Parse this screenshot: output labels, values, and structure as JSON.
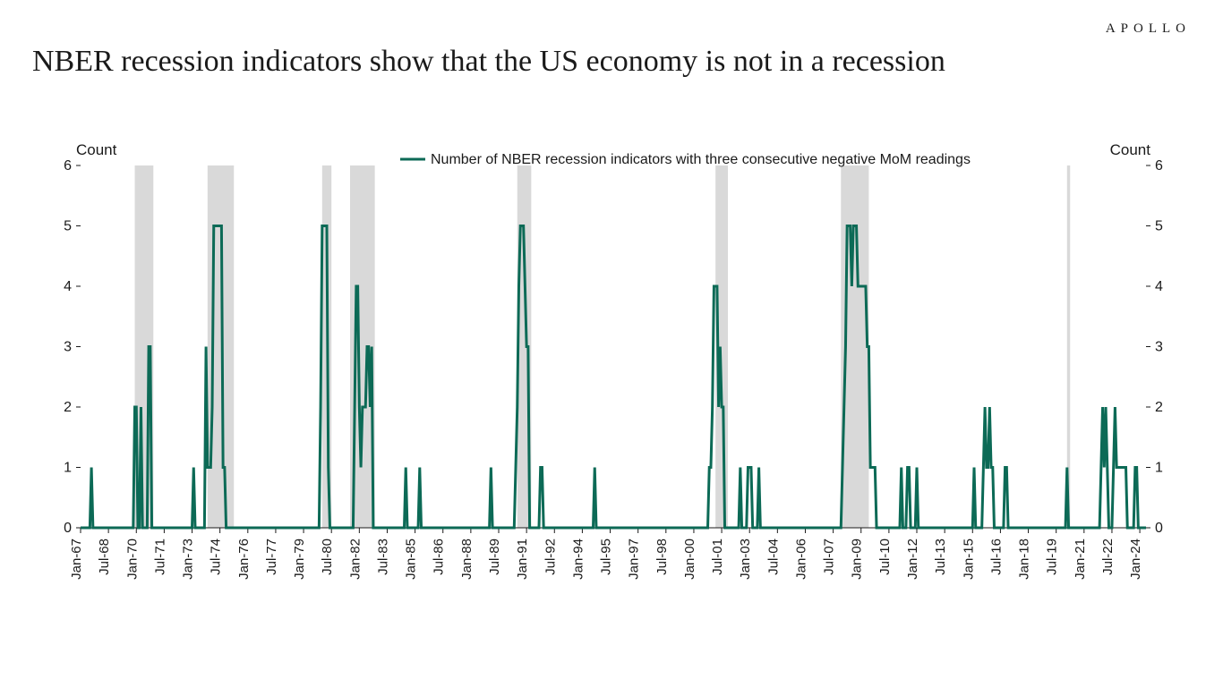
{
  "brand": "APOLLO",
  "title": "NBER recession indicators show that the US economy is not in a recession",
  "chart": {
    "type": "line",
    "y_axis_title_left": "Count",
    "y_axis_title_right": "Count",
    "ylim": [
      0,
      6
    ],
    "yticks": [
      0,
      1,
      2,
      3,
      4,
      5,
      6
    ],
    "xlim_months": [
      0,
      688
    ],
    "legend_label": "Number of NBER recession indicators with three consecutive negative MoM readings",
    "line_color": "#0c6a56",
    "line_width": 3,
    "recession_band_color": "#d9d9d9",
    "background_color": "#ffffff",
    "axis_color": "#1a1a1a",
    "tick_fontsize": 16,
    "xtick_fontsize": 15,
    "title_fontsize": 34,
    "x_tick_labels": [
      {
        "m": 0,
        "label": "Jan-67"
      },
      {
        "m": 18,
        "label": "Jul-68"
      },
      {
        "m": 36,
        "label": "Jan-70"
      },
      {
        "m": 54,
        "label": "Jul-71"
      },
      {
        "m": 72,
        "label": "Jan-73"
      },
      {
        "m": 90,
        "label": "Jul-74"
      },
      {
        "m": 108,
        "label": "Jan-76"
      },
      {
        "m": 126,
        "label": "Jul-77"
      },
      {
        "m": 144,
        "label": "Jan-79"
      },
      {
        "m": 162,
        "label": "Jul-80"
      },
      {
        "m": 180,
        "label": "Jan-82"
      },
      {
        "m": 198,
        "label": "Jul-83"
      },
      {
        "m": 216,
        "label": "Jan-85"
      },
      {
        "m": 234,
        "label": "Jul-86"
      },
      {
        "m": 252,
        "label": "Jan-88"
      },
      {
        "m": 270,
        "label": "Jul-89"
      },
      {
        "m": 288,
        "label": "Jan-91"
      },
      {
        "m": 306,
        "label": "Jul-92"
      },
      {
        "m": 324,
        "label": "Jan-94"
      },
      {
        "m": 342,
        "label": "Jul-95"
      },
      {
        "m": 360,
        "label": "Jan-97"
      },
      {
        "m": 378,
        "label": "Jul-98"
      },
      {
        "m": 396,
        "label": "Jan-00"
      },
      {
        "m": 414,
        "label": "Jul-01"
      },
      {
        "m": 432,
        "label": "Jan-03"
      },
      {
        "m": 450,
        "label": "Jul-04"
      },
      {
        "m": 468,
        "label": "Jan-06"
      },
      {
        "m": 486,
        "label": "Jul-07"
      },
      {
        "m": 504,
        "label": "Jan-09"
      },
      {
        "m": 522,
        "label": "Jul-10"
      },
      {
        "m": 540,
        "label": "Jan-12"
      },
      {
        "m": 558,
        "label": "Jul-13"
      },
      {
        "m": 576,
        "label": "Jan-15"
      },
      {
        "m": 594,
        "label": "Jul-16"
      },
      {
        "m": 612,
        "label": "Jan-18"
      },
      {
        "m": 630,
        "label": "Jul-19"
      },
      {
        "m": 648,
        "label": "Jan-21"
      },
      {
        "m": 666,
        "label": "Jul-22"
      },
      {
        "m": 684,
        "label": "Jan-24"
      }
    ],
    "recession_bands": [
      {
        "start": 35,
        "end": 47
      },
      {
        "start": 82,
        "end": 99
      },
      {
        "start": 156,
        "end": 162
      },
      {
        "start": 174,
        "end": 190
      },
      {
        "start": 282,
        "end": 291
      },
      {
        "start": 410,
        "end": 418
      },
      {
        "start": 491,
        "end": 509
      },
      {
        "start": 637,
        "end": 639
      }
    ],
    "series": [
      {
        "m": 0,
        "v": 0
      },
      {
        "m": 6,
        "v": 0
      },
      {
        "m": 7,
        "v": 1
      },
      {
        "m": 8,
        "v": 0
      },
      {
        "m": 34,
        "v": 0
      },
      {
        "m": 35,
        "v": 2
      },
      {
        "m": 36,
        "v": 2
      },
      {
        "m": 37,
        "v": 0
      },
      {
        "m": 38,
        "v": 0
      },
      {
        "m": 39,
        "v": 2
      },
      {
        "m": 40,
        "v": 0
      },
      {
        "m": 43,
        "v": 0
      },
      {
        "m": 44,
        "v": 3
      },
      {
        "m": 45,
        "v": 3
      },
      {
        "m": 46,
        "v": 0
      },
      {
        "m": 72,
        "v": 0
      },
      {
        "m": 73,
        "v": 1
      },
      {
        "m": 74,
        "v": 0
      },
      {
        "m": 80,
        "v": 0
      },
      {
        "m": 81,
        "v": 3
      },
      {
        "m": 82,
        "v": 1
      },
      {
        "m": 83,
        "v": 1
      },
      {
        "m": 84,
        "v": 1
      },
      {
        "m": 85,
        "v": 2
      },
      {
        "m": 86,
        "v": 5
      },
      {
        "m": 87,
        "v": 5
      },
      {
        "m": 88,
        "v": 5
      },
      {
        "m": 89,
        "v": 5
      },
      {
        "m": 90,
        "v": 5
      },
      {
        "m": 91,
        "v": 5
      },
      {
        "m": 92,
        "v": 1
      },
      {
        "m": 93,
        "v": 1
      },
      {
        "m": 94,
        "v": 0
      },
      {
        "m": 154,
        "v": 0
      },
      {
        "m": 155,
        "v": 2
      },
      {
        "m": 156,
        "v": 5
      },
      {
        "m": 157,
        "v": 5
      },
      {
        "m": 158,
        "v": 5
      },
      {
        "m": 159,
        "v": 5
      },
      {
        "m": 160,
        "v": 1
      },
      {
        "m": 161,
        "v": 0
      },
      {
        "m": 176,
        "v": 0
      },
      {
        "m": 177,
        "v": 2
      },
      {
        "m": 178,
        "v": 4
      },
      {
        "m": 179,
        "v": 4
      },
      {
        "m": 180,
        "v": 2
      },
      {
        "m": 181,
        "v": 1
      },
      {
        "m": 182,
        "v": 2
      },
      {
        "m": 183,
        "v": 2
      },
      {
        "m": 184,
        "v": 2
      },
      {
        "m": 185,
        "v": 3
      },
      {
        "m": 186,
        "v": 3
      },
      {
        "m": 187,
        "v": 2
      },
      {
        "m": 188,
        "v": 3
      },
      {
        "m": 189,
        "v": 0
      },
      {
        "m": 209,
        "v": 0
      },
      {
        "m": 210,
        "v": 1
      },
      {
        "m": 211,
        "v": 0
      },
      {
        "m": 218,
        "v": 0
      },
      {
        "m": 219,
        "v": 1
      },
      {
        "m": 220,
        "v": 0
      },
      {
        "m": 264,
        "v": 0
      },
      {
        "m": 265,
        "v": 1
      },
      {
        "m": 266,
        "v": 0
      },
      {
        "m": 280,
        "v": 0
      },
      {
        "m": 281,
        "v": 1
      },
      {
        "m": 282,
        "v": 2
      },
      {
        "m": 283,
        "v": 4
      },
      {
        "m": 284,
        "v": 5
      },
      {
        "m": 285,
        "v": 5
      },
      {
        "m": 286,
        "v": 5
      },
      {
        "m": 287,
        "v": 4
      },
      {
        "m": 288,
        "v": 3
      },
      {
        "m": 289,
        "v": 3
      },
      {
        "m": 290,
        "v": 0
      },
      {
        "m": 296,
        "v": 0
      },
      {
        "m": 297,
        "v": 1
      },
      {
        "m": 298,
        "v": 1
      },
      {
        "m": 299,
        "v": 0
      },
      {
        "m": 331,
        "v": 0
      },
      {
        "m": 332,
        "v": 1
      },
      {
        "m": 333,
        "v": 0
      },
      {
        "m": 405,
        "v": 0
      },
      {
        "m": 406,
        "v": 1
      },
      {
        "m": 407,
        "v": 1
      },
      {
        "m": 408,
        "v": 2
      },
      {
        "m": 409,
        "v": 4
      },
      {
        "m": 410,
        "v": 4
      },
      {
        "m": 411,
        "v": 4
      },
      {
        "m": 412,
        "v": 2
      },
      {
        "m": 413,
        "v": 3
      },
      {
        "m": 414,
        "v": 2
      },
      {
        "m": 415,
        "v": 2
      },
      {
        "m": 416,
        "v": 0
      },
      {
        "m": 425,
        "v": 0
      },
      {
        "m": 426,
        "v": 1
      },
      {
        "m": 427,
        "v": 0
      },
      {
        "m": 430,
        "v": 0
      },
      {
        "m": 431,
        "v": 1
      },
      {
        "m": 432,
        "v": 1
      },
      {
        "m": 433,
        "v": 1
      },
      {
        "m": 434,
        "v": 0
      },
      {
        "m": 437,
        "v": 0
      },
      {
        "m": 438,
        "v": 1
      },
      {
        "m": 439,
        "v": 0
      },
      {
        "m": 491,
        "v": 0
      },
      {
        "m": 492,
        "v": 1
      },
      {
        "m": 493,
        "v": 2
      },
      {
        "m": 494,
        "v": 3
      },
      {
        "m": 495,
        "v": 5
      },
      {
        "m": 496,
        "v": 5
      },
      {
        "m": 497,
        "v": 5
      },
      {
        "m": 498,
        "v": 4
      },
      {
        "m": 499,
        "v": 5
      },
      {
        "m": 500,
        "v": 5
      },
      {
        "m": 501,
        "v": 5
      },
      {
        "m": 502,
        "v": 4
      },
      {
        "m": 503,
        "v": 4
      },
      {
        "m": 504,
        "v": 4
      },
      {
        "m": 505,
        "v": 4
      },
      {
        "m": 506,
        "v": 4
      },
      {
        "m": 507,
        "v": 4
      },
      {
        "m": 508,
        "v": 3
      },
      {
        "m": 509,
        "v": 3
      },
      {
        "m": 510,
        "v": 1
      },
      {
        "m": 511,
        "v": 1
      },
      {
        "m": 512,
        "v": 1
      },
      {
        "m": 513,
        "v": 1
      },
      {
        "m": 514,
        "v": 0
      },
      {
        "m": 529,
        "v": 0
      },
      {
        "m": 530,
        "v": 1
      },
      {
        "m": 531,
        "v": 0
      },
      {
        "m": 533,
        "v": 0
      },
      {
        "m": 534,
        "v": 1
      },
      {
        "m": 535,
        "v": 1
      },
      {
        "m": 536,
        "v": 0
      },
      {
        "m": 539,
        "v": 0
      },
      {
        "m": 540,
        "v": 1
      },
      {
        "m": 541,
        "v": 0
      },
      {
        "m": 576,
        "v": 0
      },
      {
        "m": 577,
        "v": 1
      },
      {
        "m": 578,
        "v": 0
      },
      {
        "m": 582,
        "v": 0
      },
      {
        "m": 583,
        "v": 1
      },
      {
        "m": 584,
        "v": 2
      },
      {
        "m": 585,
        "v": 1
      },
      {
        "m": 586,
        "v": 1
      },
      {
        "m": 587,
        "v": 2
      },
      {
        "m": 588,
        "v": 1
      },
      {
        "m": 589,
        "v": 1
      },
      {
        "m": 590,
        "v": 0
      },
      {
        "m": 596,
        "v": 0
      },
      {
        "m": 597,
        "v": 1
      },
      {
        "m": 598,
        "v": 1
      },
      {
        "m": 599,
        "v": 0
      },
      {
        "m": 636,
        "v": 0
      },
      {
        "m": 637,
        "v": 1
      },
      {
        "m": 638,
        "v": 0
      },
      {
        "m": 658,
        "v": 0
      },
      {
        "m": 659,
        "v": 1
      },
      {
        "m": 660,
        "v": 2
      },
      {
        "m": 661,
        "v": 1
      },
      {
        "m": 662,
        "v": 2
      },
      {
        "m": 663,
        "v": 1
      },
      {
        "m": 664,
        "v": 0
      },
      {
        "m": 666,
        "v": 0
      },
      {
        "m": 667,
        "v": 1
      },
      {
        "m": 668,
        "v": 2
      },
      {
        "m": 669,
        "v": 1
      },
      {
        "m": 670,
        "v": 1
      },
      {
        "m": 671,
        "v": 1
      },
      {
        "m": 672,
        "v": 1
      },
      {
        "m": 673,
        "v": 1
      },
      {
        "m": 674,
        "v": 1
      },
      {
        "m": 675,
        "v": 1
      },
      {
        "m": 676,
        "v": 0
      },
      {
        "m": 680,
        "v": 0
      },
      {
        "m": 681,
        "v": 1
      },
      {
        "m": 682,
        "v": 1
      },
      {
        "m": 683,
        "v": 0
      },
      {
        "m": 688,
        "v": 0
      }
    ]
  }
}
